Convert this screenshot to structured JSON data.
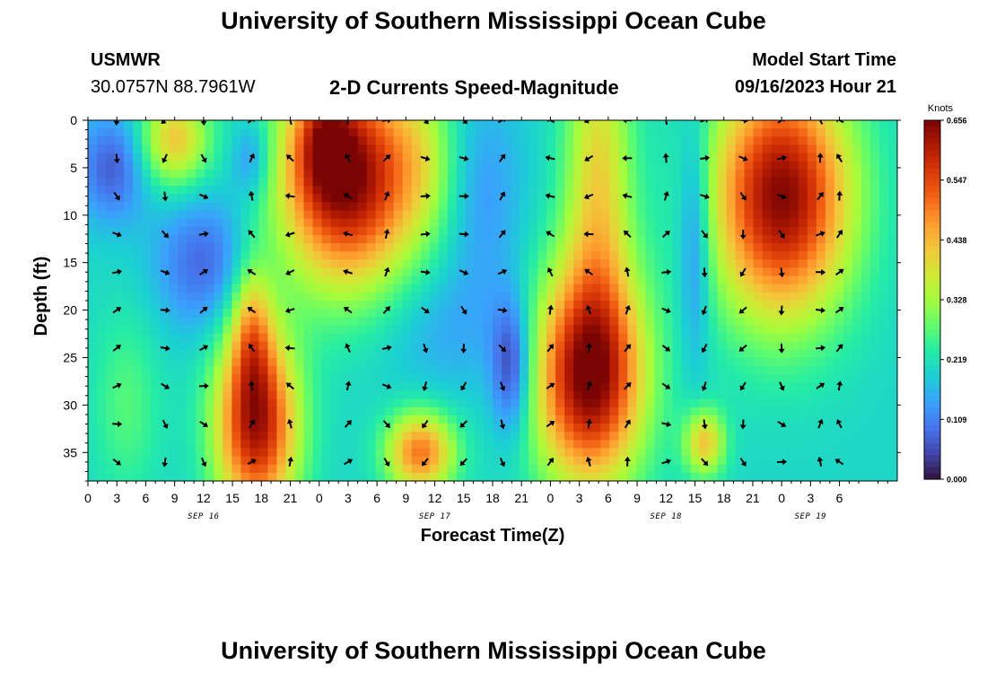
{
  "page": {
    "title_top": "University of Southern Mississippi Ocean Cube",
    "title_bottom": "University of Southern Mississippi Ocean Cube",
    "station": "USMWR",
    "location": "30.0757N  88.7961W",
    "model_start_label": "Model Start Time",
    "model_start_value": "09/16/2023 Hour 21"
  },
  "chart_data": {
    "type": "heatmap",
    "title": "2-D Currents Speed-Magnitude",
    "xlabel": "Forecast Time(Z)",
    "ylabel": "Depth (ft)",
    "colorbar_label": "Knots",
    "colorbar_ticks": [
      "0.656",
      "0.547",
      "0.438",
      "0.328",
      "0.219",
      "0.109",
      "0.000"
    ],
    "value_range": [
      0.0,
      0.656
    ],
    "x_range_hours": [
      0,
      84
    ],
    "x_ticks": [
      {
        "hour": 0,
        "label": "0"
      },
      {
        "hour": 3,
        "label": "3"
      },
      {
        "hour": 6,
        "label": "6"
      },
      {
        "hour": 9,
        "label": "9"
      },
      {
        "hour": 12,
        "label": "12"
      },
      {
        "hour": 15,
        "label": "15"
      },
      {
        "hour": 18,
        "label": "18"
      },
      {
        "hour": 21,
        "label": "21"
      },
      {
        "hour": 24,
        "label": "0"
      },
      {
        "hour": 27,
        "label": "3"
      },
      {
        "hour": 30,
        "label": "6"
      },
      {
        "hour": 33,
        "label": "9"
      },
      {
        "hour": 36,
        "label": "12"
      },
      {
        "hour": 39,
        "label": "15"
      },
      {
        "hour": 42,
        "label": "18"
      },
      {
        "hour": 45,
        "label": "21"
      },
      {
        "hour": 48,
        "label": "0"
      },
      {
        "hour": 51,
        "label": "3"
      },
      {
        "hour": 54,
        "label": "6"
      },
      {
        "hour": 57,
        "label": "9"
      },
      {
        "hour": 60,
        "label": "12"
      },
      {
        "hour": 63,
        "label": "15"
      },
      {
        "hour": 66,
        "label": "18"
      },
      {
        "hour": 69,
        "label": "21"
      },
      {
        "hour": 72,
        "label": "0"
      },
      {
        "hour": 75,
        "label": "3"
      },
      {
        "hour": 78,
        "label": "6"
      }
    ],
    "date_labels": [
      {
        "hour": 12,
        "label": "SEP 16"
      },
      {
        "hour": 36,
        "label": "SEP 17"
      },
      {
        "hour": 60,
        "label": "SEP 18"
      },
      {
        "hour": 75,
        "label": "SEP 19"
      }
    ],
    "y_range_ft": [
      0,
      38
    ],
    "y_ticks": [
      0,
      5,
      10,
      15,
      20,
      25,
      30,
      35
    ],
    "speed_blobs": [
      {
        "t": 2.5,
        "d": 5,
        "st": 2.5,
        "sd": 4,
        "v": -0.13
      },
      {
        "t": 9,
        "d": 2,
        "st": 2.5,
        "sd": 3.5,
        "v": 0.22
      },
      {
        "t": 17,
        "d": 4,
        "st": 1.5,
        "sd": 3,
        "v": -0.1
      },
      {
        "t": 12,
        "d": 15,
        "st": 3.5,
        "sd": 5,
        "v": -0.12
      },
      {
        "t": 17.5,
        "d": 32,
        "st": 3,
        "sd": 7,
        "v": 0.42
      },
      {
        "t": 17,
        "d": 22,
        "st": 1.5,
        "sd": 5,
        "v": 0.18
      },
      {
        "t": 4,
        "d": 30,
        "st": 2.5,
        "sd": 7,
        "v": 0.07
      },
      {
        "t": 27,
        "d": 6,
        "st": 5,
        "sd": 8,
        "v": 0.46
      },
      {
        "t": 24.5,
        "d": 2,
        "st": 2,
        "sd": 4,
        "v": 0.15
      },
      {
        "t": 35,
        "d": 4,
        "st": 2.5,
        "sd": 6,
        "v": 0.08
      },
      {
        "t": 34.5,
        "d": 35,
        "st": 2.5,
        "sd": 3,
        "v": 0.3
      },
      {
        "t": 44,
        "d": 26,
        "st": 1.5,
        "sd": 5,
        "v": -0.17
      },
      {
        "t": 41,
        "d": 8,
        "st": 3,
        "sd": 8,
        "v": -0.07
      },
      {
        "t": 52,
        "d": 27,
        "st": 4,
        "sd": 8,
        "v": 0.45
      },
      {
        "t": 53,
        "d": 6,
        "st": 2.5,
        "sd": 12,
        "v": 0.2
      },
      {
        "t": 63,
        "d": 12,
        "st": 1.2,
        "sd": 9,
        "v": -0.12
      },
      {
        "t": 64,
        "d": 34,
        "st": 1.5,
        "sd": 2.5,
        "v": 0.22
      },
      {
        "t": 72,
        "d": 8,
        "st": 5,
        "sd": 9,
        "v": 0.45
      },
      {
        "t": 37,
        "d": 22,
        "st": 5,
        "sd": 5,
        "v": -0.05
      }
    ],
    "arrow_columns_hours": [
      3,
      8,
      12,
      17,
      21,
      27,
      31,
      35,
      39,
      43,
      48,
      52,
      56,
      60,
      64,
      68,
      72,
      76,
      78
    ],
    "arrow_rows_ft": [
      0,
      4,
      8,
      12,
      16,
      20,
      24,
      28,
      32,
      36
    ]
  },
  "colors": {
    "colormap": [
      "#30123b",
      "#4145ab",
      "#4675ed",
      "#39a2fc",
      "#1bcfd4",
      "#24eca6",
      "#61fc6c",
      "#a4fc3b",
      "#d1e834",
      "#f3c63a",
      "#fe9b2d",
      "#f36315",
      "#d93806",
      "#b11901",
      "#7a0403"
    ]
  }
}
